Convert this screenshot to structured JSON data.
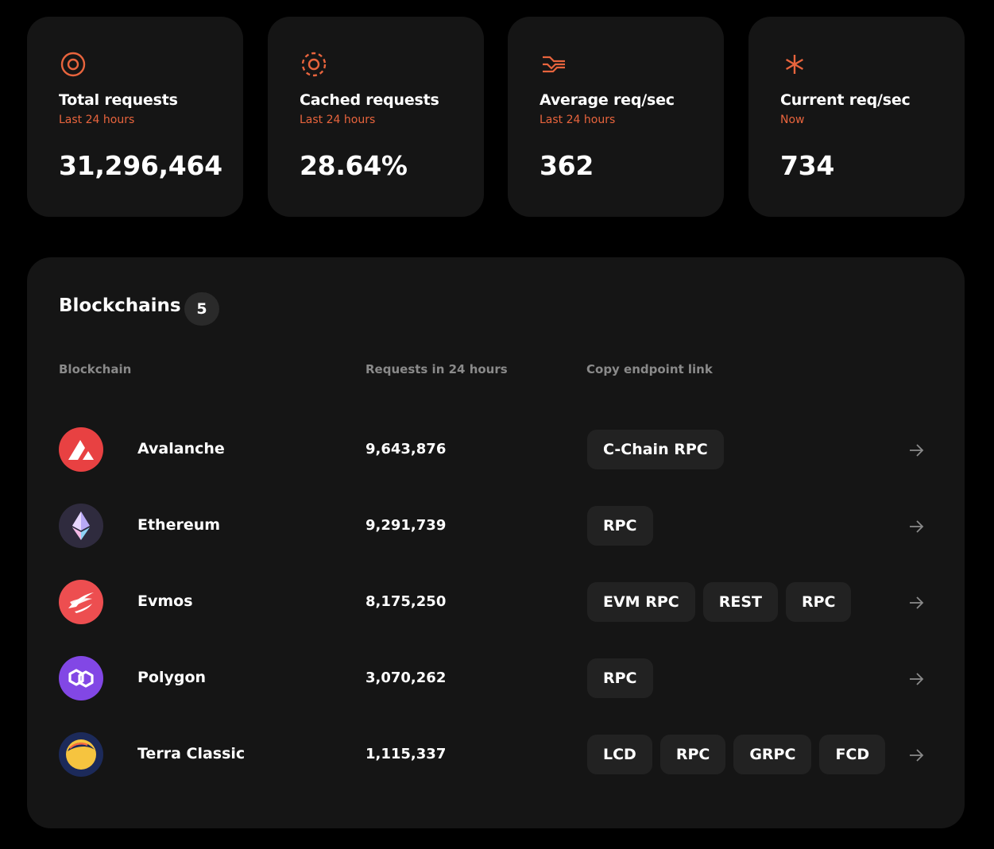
{
  "stats": [
    {
      "icon": "target-icon",
      "title": "Total requests",
      "subtitle": "Last 24 hours",
      "value": "31,296,464"
    },
    {
      "icon": "dashed-target-icon",
      "title": "Cached requests",
      "subtitle": "Last 24 hours",
      "value": "28.64%"
    },
    {
      "icon": "wave-lines-icon",
      "title": "Average req/sec",
      "subtitle": "Last 24 hours",
      "value": "362"
    },
    {
      "icon": "asterisk-icon",
      "title": "Current req/sec",
      "subtitle": "Now",
      "value": "734"
    }
  ],
  "accent_color": "#e8643d",
  "blockchains": {
    "title": "Blockchains",
    "count": "5",
    "columns": {
      "blockchain": "Blockchain",
      "requests": "Requests in 24 hours",
      "endpoint": "Copy endpoint link"
    },
    "rows": [
      {
        "name": "Avalanche",
        "logo": "avalanche-logo",
        "logo_color": "#e84142",
        "requests": "9,643,876",
        "endpoints": [
          "C-Chain RPC"
        ]
      },
      {
        "name": "Ethereum",
        "logo": "ethereum-logo",
        "logo_color": "#2f2b3e",
        "requests": "9,291,739",
        "endpoints": [
          "RPC"
        ]
      },
      {
        "name": "Evmos",
        "logo": "evmos-logo",
        "logo_color": "#ed4e50",
        "requests": "8,175,250",
        "endpoints": [
          "EVM RPC",
          "REST",
          "RPC"
        ]
      },
      {
        "name": "Polygon",
        "logo": "polygon-logo",
        "logo_color": "#8247e5",
        "requests": "3,070,262",
        "endpoints": [
          "RPC"
        ]
      },
      {
        "name": "Terra Classic",
        "logo": "terra-classic-logo",
        "logo_color": "#1c2a5a",
        "requests": "1,115,337",
        "endpoints": [
          "LCD",
          "RPC",
          "GRPC",
          "FCD"
        ]
      }
    ]
  }
}
